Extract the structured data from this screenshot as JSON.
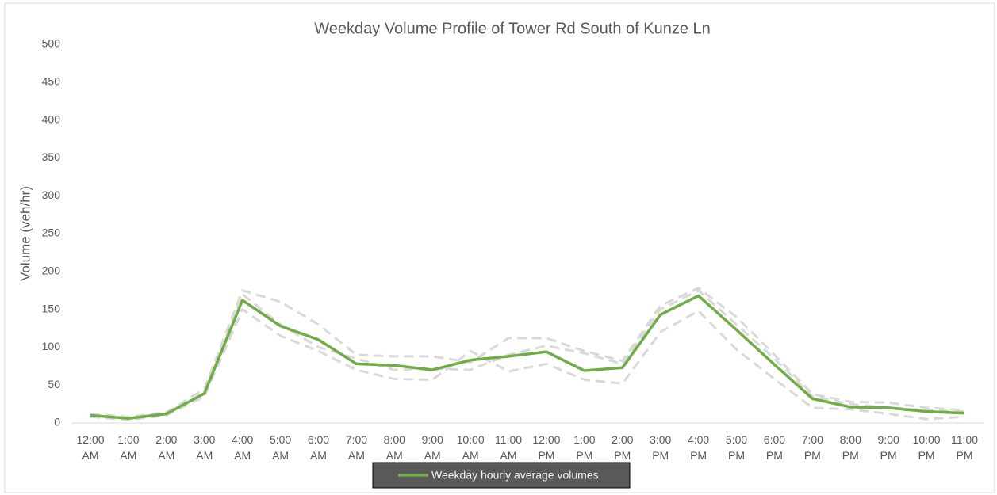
{
  "chart_data": {
    "type": "line",
    "title": "Weekday Volume Profile of Tower Rd South of Kunze Ln",
    "y_label": "Volume (veh/hr)",
    "categories": [
      "12:00 AM",
      "1:00 AM",
      "2:00 AM",
      "3:00 AM",
      "4:00 AM",
      "5:00 AM",
      "6:00 AM",
      "7:00 AM",
      "8:00 AM",
      "9:00 AM",
      "10:00 AM",
      "11:00 AM",
      "12:00 PM",
      "1:00 PM",
      "2:00 PM",
      "3:00 PM",
      "4:00 PM",
      "5:00 PM",
      "6:00 PM",
      "7:00 PM",
      "8:00 PM",
      "9:00 PM",
      "10:00 PM",
      "11:00 PM"
    ],
    "series": [
      {
        "color": "#d9d9d9",
        "dashed": true,
        "values": [
          12,
          8,
          14,
          45,
          175,
          160,
          130,
          90,
          88,
          88,
          80,
          112,
          112,
          95,
          82,
          155,
          178,
          140,
          90,
          38,
          28,
          27,
          20,
          17
        ]
      },
      {
        "color": "#d9d9d9",
        "dashed": true,
        "values": [
          8,
          4,
          10,
          35,
          150,
          115,
          95,
          70,
          58,
          57,
          95,
          68,
          78,
          57,
          52,
          120,
          148,
          97,
          58,
          20,
          18,
          12,
          5,
          8
        ]
      },
      {
        "color": "#d9d9d9",
        "dashed": true,
        "values": [
          10,
          6,
          12,
          40,
          170,
          130,
          100,
          85,
          70,
          72,
          70,
          90,
          102,
          92,
          78,
          150,
          175,
          130,
          85,
          35,
          25,
          20,
          17,
          15
        ]
      },
      {
        "name": "Weekday hourly average volumes",
        "color": "#70ad47",
        "values": [
          10,
          6,
          12,
          39,
          162,
          128,
          110,
          78,
          76,
          70,
          83,
          88,
          94,
          69,
          73,
          143,
          168,
          123,
          77,
          32,
          21,
          20,
          15,
          13
        ]
      }
    ],
    "ylim": [
      0,
      500
    ],
    "yticks": [
      0,
      50,
      100,
      150,
      200,
      250,
      300,
      350,
      400,
      450,
      500
    ],
    "grid": false,
    "legend": "bottom"
  }
}
